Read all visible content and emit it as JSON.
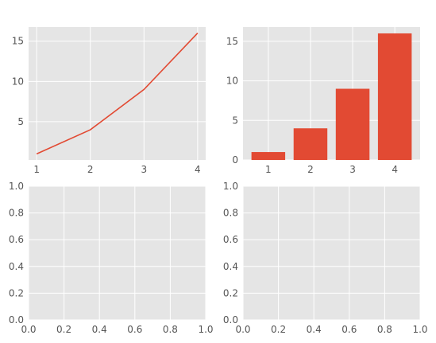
{
  "style": {
    "axes_bg": "#e5e5e5",
    "grid_color": "#ffffff",
    "series_color": "#e24a33",
    "tick_color": "#555555"
  },
  "chart_data": [
    {
      "type": "line",
      "x": [
        1,
        2,
        3,
        4
      ],
      "values": [
        1,
        4,
        9,
        16
      ],
      "xlim": [
        0.85,
        4.15
      ],
      "ylim": [
        0.25,
        16.75
      ],
      "xticks": [
        1,
        2,
        3,
        4
      ],
      "yticks": [
        5,
        10,
        15
      ],
      "grid": true
    },
    {
      "type": "bar",
      "categories": [
        "1",
        "2",
        "3",
        "4"
      ],
      "x": [
        1,
        2,
        3,
        4
      ],
      "values": [
        1,
        4,
        9,
        16
      ],
      "xlim": [
        0.4,
        4.6
      ],
      "ylim": [
        0,
        16.8
      ],
      "xticks": [
        1,
        2,
        3,
        4
      ],
      "yticks": [
        0,
        5,
        10,
        15
      ],
      "grid": true
    },
    {
      "type": "line",
      "x": [],
      "values": [],
      "xlim": [
        0,
        1
      ],
      "ylim": [
        0,
        1
      ],
      "xticks": [
        "0.0",
        "0.2",
        "0.4",
        "0.6",
        "0.8",
        "1.0"
      ],
      "yticks": [
        "0.0",
        "0.2",
        "0.4",
        "0.6",
        "0.8",
        "1.0"
      ],
      "grid": true
    },
    {
      "type": "line",
      "x": [],
      "values": [],
      "xlim": [
        0,
        1
      ],
      "ylim": [
        0,
        1
      ],
      "xticks": [
        "0.0",
        "0.2",
        "0.4",
        "0.6",
        "0.8",
        "1.0"
      ],
      "yticks": [
        "0.0",
        "0.2",
        "0.4",
        "0.6",
        "0.8",
        "1.0"
      ],
      "grid": true
    }
  ]
}
